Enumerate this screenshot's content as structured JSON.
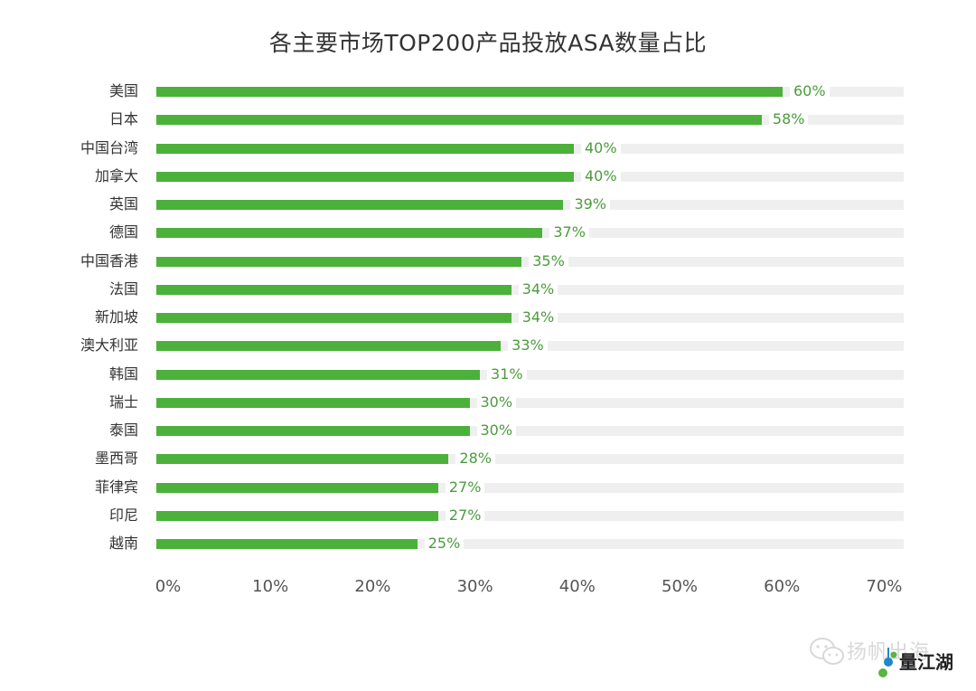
{
  "chart_data": {
    "type": "bar",
    "orientation": "horizontal",
    "title": "各主要市场TOP200产品投放ASA数量占比",
    "xlabel": "",
    "ylabel": "",
    "xlim": [
      0,
      70
    ],
    "x_ticks": [
      "0%",
      "10%",
      "20%",
      "30%",
      "40%",
      "50%",
      "60%",
      "70%"
    ],
    "grid": false,
    "legend": null,
    "bar_color": "#4bb13a",
    "track_color": "#efefef",
    "value_label_color": "#4c9b3e",
    "categories": [
      "美国",
      "日本",
      "中国台湾",
      "加拿大",
      "英国",
      "德国",
      "中国香港",
      "法国",
      "新加坡",
      "澳大利亚",
      "韩国",
      "瑞士",
      "泰国",
      "墨西哥",
      "菲律宾",
      "印尼",
      "越南"
    ],
    "values": [
      60,
      58,
      40,
      40,
      39,
      37,
      35,
      34,
      34,
      33,
      31,
      30,
      30,
      28,
      27,
      27,
      25
    ],
    "value_labels": [
      "60%",
      "58%",
      "40%",
      "40%",
      "39%",
      "37%",
      "35%",
      "34%",
      "34%",
      "33%",
      "31%",
      "30%",
      "30%",
      "28%",
      "27%",
      "27%",
      "25%"
    ]
  },
  "watermark": {
    "wechat_text": "扬帆出海",
    "brand_text": "量江湖"
  }
}
